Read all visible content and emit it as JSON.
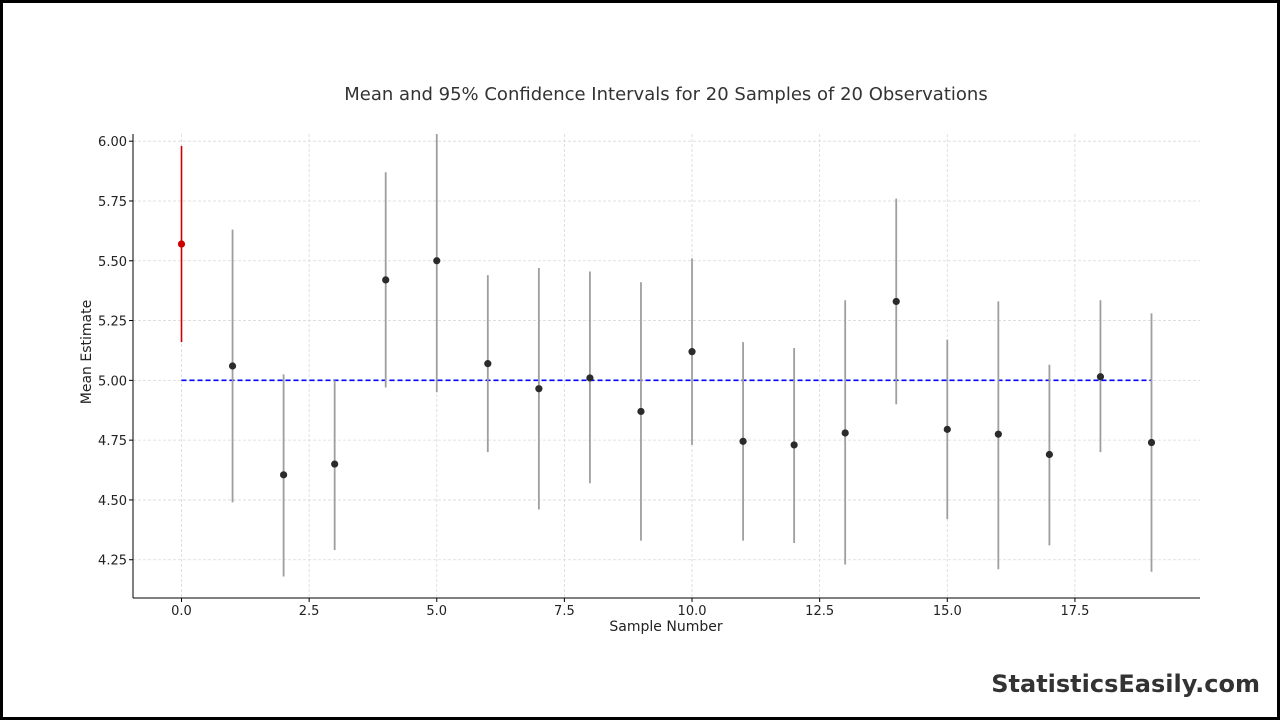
{
  "chart_data": {
    "type": "scatter",
    "title": "Mean and 95% Confidence Intervals for 20 Samples of 20 Observations",
    "xlabel": "Sample Number",
    "ylabel": "Mean Estimate",
    "xlim": [
      -0.95,
      19.95
    ],
    "ylim": [
      4.09,
      6.03
    ],
    "x_ticks": [
      0.0,
      2.5,
      5.0,
      7.5,
      10.0,
      12.5,
      15.0,
      17.5
    ],
    "x_tick_labels": [
      "0.0",
      "2.5",
      "5.0",
      "7.5",
      "10.0",
      "12.5",
      "15.0",
      "17.5"
    ],
    "y_ticks": [
      4.25,
      4.5,
      4.75,
      5.0,
      5.25,
      5.5,
      5.75,
      6.0
    ],
    "y_tick_labels": [
      "4.25",
      "4.50",
      "4.75",
      "5.00",
      "5.25",
      "5.50",
      "5.75",
      "6.00"
    ],
    "grid": true,
    "reference_line": {
      "y": 5.0,
      "x_range": [
        0,
        19
      ],
      "color": "#0000ff",
      "style": "dashed"
    },
    "series": [
      {
        "x": [
          0,
          1,
          2,
          3,
          4,
          5,
          6,
          7,
          8,
          9,
          10,
          11,
          12,
          13,
          14,
          15,
          16,
          17,
          18,
          19
        ],
        "mean": [
          5.57,
          5.06,
          4.605,
          4.65,
          5.42,
          5.5,
          5.07,
          4.965,
          5.01,
          4.87,
          5.12,
          4.745,
          4.73,
          4.78,
          5.33,
          4.795,
          4.775,
          4.69,
          5.015,
          4.74
        ],
        "lower": [
          5.16,
          4.49,
          4.18,
          4.29,
          4.97,
          4.95,
          4.7,
          4.46,
          4.57,
          4.33,
          4.73,
          4.33,
          4.32,
          4.23,
          4.9,
          4.42,
          4.21,
          4.31,
          4.7,
          4.2
        ],
        "upper": [
          5.98,
          5.63,
          5.025,
          5.0,
          5.87,
          6.03,
          5.44,
          5.47,
          5.455,
          5.41,
          5.51,
          5.16,
          5.135,
          5.335,
          5.76,
          5.17,
          5.33,
          5.065,
          5.335,
          5.28
        ],
        "highlight_index": 0,
        "colors": {
          "normal_point": "#2b2b2b",
          "normal_interval": "#9e9e9e",
          "highlight": "#cc0000"
        }
      }
    ]
  },
  "watermark": "StatisticsEasily.com"
}
